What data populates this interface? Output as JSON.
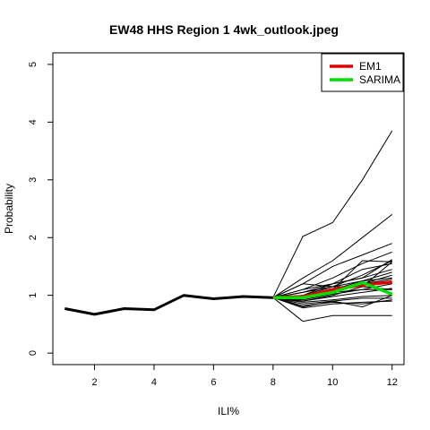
{
  "chart_data": {
    "type": "line",
    "title": "EW48 HHS Region 1 4wk_outlook.jpeg",
    "xlabel": "ILI%",
    "ylabel": "Probability",
    "xlim": [
      0.6,
      12.4
    ],
    "ylim": [
      -0.2,
      5.2
    ],
    "x_ticks": [
      2,
      4,
      6,
      8,
      10,
      12
    ],
    "y_ticks": [
      0,
      1,
      2,
      3,
      4,
      5
    ],
    "grid": false,
    "legend_position": "top-right",
    "colors": {
      "history": "#000000",
      "em1": "#dd0000",
      "sarima": "#00dd00",
      "ensemble": "#000000"
    },
    "history": {
      "x": [
        1,
        2,
        3,
        4,
        5,
        6,
        7,
        8
      ],
      "y": [
        0.77,
        0.67,
        0.77,
        0.75,
        1.0,
        0.94,
        0.98,
        0.96
      ]
    },
    "ensemble": {
      "x": [
        8,
        9,
        10,
        11,
        12
      ],
      "lines": [
        [
          0.96,
          2.02,
          2.26,
          3.0,
          3.85
        ],
        [
          0.96,
          1.3,
          1.6,
          2.0,
          2.4
        ],
        [
          0.96,
          1.2,
          1.5,
          1.7,
          1.9
        ],
        [
          0.96,
          1.1,
          1.3,
          1.55,
          1.75
        ],
        [
          0.96,
          1.0,
          1.15,
          1.35,
          1.6
        ],
        [
          0.96,
          1.05,
          1.2,
          1.45,
          1.55
        ],
        [
          0.96,
          1.1,
          1.2,
          1.3,
          1.45
        ],
        [
          0.96,
          1.0,
          1.1,
          1.25,
          1.4
        ],
        [
          0.96,
          0.95,
          1.05,
          1.2,
          1.35
        ],
        [
          0.96,
          1.05,
          1.15,
          1.25,
          1.3
        ],
        [
          0.96,
          0.98,
          1.08,
          1.2,
          1.28
        ],
        [
          0.96,
          0.92,
          1.02,
          1.1,
          1.2
        ],
        [
          0.96,
          0.9,
          0.98,
          1.05,
          1.12
        ],
        [
          0.96,
          1.0,
          1.05,
          1.1,
          1.1
        ],
        [
          0.96,
          0.88,
          0.92,
          0.98,
          1.0
        ],
        [
          0.96,
          0.85,
          0.9,
          0.95,
          0.95
        ],
        [
          0.96,
          0.9,
          1.0,
          1.15,
          1.58
        ],
        [
          0.96,
          0.82,
          0.88,
          0.85,
          0.92
        ],
        [
          0.96,
          0.78,
          0.85,
          0.88,
          0.9
        ],
        [
          0.96,
          0.8,
          0.9,
          0.8,
          1.0
        ],
        [
          0.96,
          0.55,
          0.65,
          0.65,
          0.65
        ],
        [
          0.96,
          1.0,
          1.2,
          1.3,
          1.62
        ],
        [
          0.96,
          0.95,
          1.1,
          1.6,
          1.58
        ],
        [
          0.96,
          1.2,
          1.15,
          1.15,
          1.1
        ]
      ]
    },
    "series": [
      {
        "name": "EM1",
        "x": [
          8,
          9,
          10,
          11,
          12
        ],
        "y": [
          0.96,
          0.98,
          1.1,
          1.18,
          1.23
        ]
      },
      {
        "name": "SARIMA",
        "x": [
          8,
          9,
          10,
          11,
          12
        ],
        "y": [
          0.96,
          0.96,
          1.05,
          1.22,
          1.02
        ]
      }
    ]
  }
}
